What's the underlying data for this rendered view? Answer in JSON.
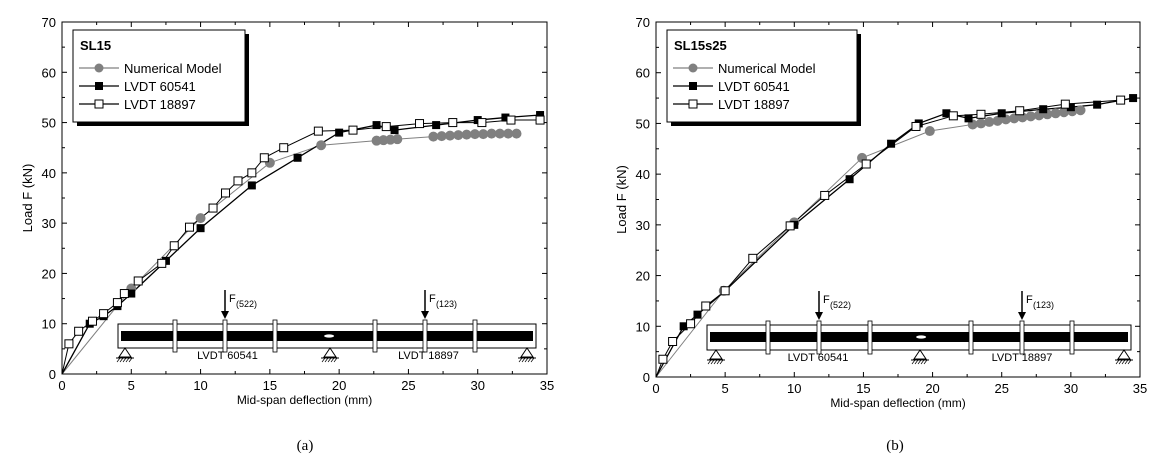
{
  "chart_data": [
    {
      "type": "line",
      "panel_label": "(a)",
      "legend_title": "SL15",
      "xlabel": "Mid-span deflection (mm)",
      "ylabel": "Load F (kN)",
      "xlim": [
        0,
        35
      ],
      "ylim": [
        0,
        70
      ],
      "xticks": [
        "0",
        "5",
        "10",
        "15",
        "20",
        "25",
        "30",
        "35"
      ],
      "yticks": [
        "0",
        "10",
        "20",
        "30",
        "40",
        "50",
        "60",
        "70"
      ],
      "legend_position": "top-left",
      "series": [
        {
          "name": "Numerical Model",
          "color": "#808080",
          "marker": "filled-circle",
          "x": [
            0,
            5,
            10,
            15,
            18.7,
            22.7,
            23.2,
            23.7,
            24.2,
            26.8,
            27.4,
            28.0,
            28.6,
            29.2,
            29.8,
            30.4,
            31.0,
            31.6,
            32.2,
            32.8
          ],
          "y": [
            0,
            17,
            31,
            42,
            45.5,
            46.4,
            46.5,
            46.6,
            46.7,
            47.2,
            47.3,
            47.4,
            47.5,
            47.6,
            47.7,
            47.7,
            47.8,
            47.8,
            47.8,
            47.8
          ]
        },
        {
          "name": "LVDT 60541",
          "color": "#000000",
          "marker": "filled-square",
          "x": [
            0,
            2,
            3,
            4,
            5,
            7.5,
            10,
            13.7,
            17,
            20,
            22.7,
            24,
            27,
            30,
            32,
            34.5
          ],
          "y": [
            0,
            10,
            11.5,
            13.5,
            16,
            22.5,
            29,
            37.5,
            43,
            48,
            49.5,
            48.5,
            49.5,
            50.5,
            51,
            51.5
          ]
        },
        {
          "name": "LVDT 18897",
          "color": "#000000",
          "marker": "open-square",
          "x": [
            0,
            0.5,
            1.2,
            2.2,
            3.0,
            4.0,
            4.5,
            5.5,
            7.2,
            8.1,
            9.2,
            10.9,
            11.8,
            12.7,
            13.7,
            14.6,
            16.0,
            18.5,
            21.0,
            23.4,
            25.8,
            28.2,
            30.3,
            32.4,
            34.5
          ],
          "y": [
            0,
            6,
            8.5,
            10.5,
            12,
            14.2,
            16,
            18.5,
            22,
            25.5,
            29.2,
            33,
            36,
            38.4,
            40,
            43,
            45,
            48.3,
            48.5,
            49.2,
            49.8,
            50,
            50,
            50.5,
            50.5
          ]
        }
      ],
      "inset": {
        "forces": [
          "F",
          "F"
        ],
        "force_subscripts": [
          "(522)",
          "(123)"
        ],
        "sensors": [
          "LVDT 60541",
          "LVDT 18897"
        ]
      }
    },
    {
      "type": "line",
      "panel_label": "(b)",
      "legend_title": "SL15s25",
      "xlabel": "Mid-span deflection (mm)",
      "ylabel": "Load F (kN)",
      "xlim": [
        0,
        35
      ],
      "ylim": [
        0,
        70
      ],
      "xticks": [
        "0",
        "5",
        "10",
        "15",
        "20",
        "25",
        "30",
        "35"
      ],
      "yticks": [
        "0",
        "10",
        "20",
        "30",
        "40",
        "50",
        "60",
        "70"
      ],
      "legend_position": "top-left",
      "series": [
        {
          "name": "Numerical Model",
          "color": "#808080",
          "marker": "filled-circle",
          "x": [
            0,
            4.9,
            10.0,
            14.9,
            19.8,
            22.9,
            23.5,
            24.1,
            24.7,
            25.3,
            25.9,
            26.5,
            27.1,
            27.7,
            28.3,
            28.9,
            29.5,
            30.1,
            30.7
          ],
          "y": [
            0,
            17,
            30.5,
            43.2,
            48.5,
            49.8,
            50,
            50.3,
            50.5,
            50.8,
            51,
            51.2,
            51.4,
            51.6,
            51.8,
            52,
            52.2,
            52.4,
            52.6
          ]
        },
        {
          "name": "LVDT 60541",
          "color": "#000000",
          "marker": "filled-square",
          "x": [
            0,
            2,
            3,
            5,
            10,
            14,
            17,
            19,
            21,
            22.6,
            25,
            28,
            30,
            31.9,
            34.5
          ],
          "y": [
            0,
            10,
            12.3,
            17,
            30,
            39,
            46,
            50,
            52,
            51,
            52,
            52.8,
            53.2,
            53.7,
            55
          ]
        },
        {
          "name": "LVDT 18897",
          "color": "#000000",
          "marker": "open-square",
          "x": [
            0,
            0.5,
            1.2,
            2.5,
            3.6,
            5.0,
            7.0,
            9.7,
            12.2,
            15.2,
            18.8,
            21.5,
            23.5,
            26.3,
            29.6,
            33.6
          ],
          "y": [
            0,
            3.5,
            7,
            10.5,
            14,
            17,
            23.4,
            29.8,
            35.8,
            42,
            49.4,
            51.5,
            51.8,
            52.5,
            53.8,
            54.6
          ]
        }
      ],
      "inset": {
        "forces": [
          "F",
          "F"
        ],
        "force_subscripts": [
          "(522)",
          "(123)"
        ],
        "sensors": [
          "LVDT 60541",
          "LVDT 18897"
        ]
      }
    }
  ]
}
